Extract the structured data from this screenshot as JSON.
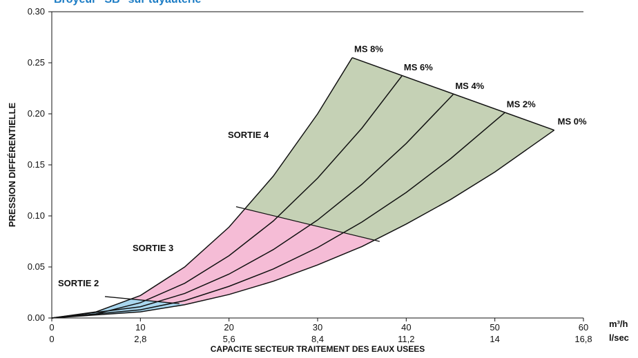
{
  "chart_data": {
    "type": "line",
    "title": "Broyeur \"SB\" sur tuyauterie",
    "x_label": "CAPACITE SECTEUR TRAITEMENT DES EAUX USEES",
    "y_label": "PRESSION DIFFÉRENTIELLE",
    "x_unit": "m³/h",
    "x2_unit": "l/sec",
    "xlim": [
      0,
      60
    ],
    "xticks": [
      0,
      10,
      20,
      30,
      40,
      50,
      60
    ],
    "x2ticks": [
      {
        "value": 0,
        "label": "0"
      },
      {
        "value": 10,
        "label": "2,8"
      },
      {
        "value": 20,
        "label": "5,6"
      },
      {
        "value": 30,
        "label": "8,4"
      },
      {
        "value": 40,
        "label": "11,2"
      },
      {
        "value": 50,
        "label": "14"
      },
      {
        "value": 60,
        "label": "16,8"
      }
    ],
    "ylim": [
      0,
      0.3
    ],
    "yticks": [
      {
        "value": 0,
        "label": "0.00"
      },
      {
        "value": 0.05,
        "label": "0.05"
      },
      {
        "value": 0.1,
        "label": "0.10"
      },
      {
        "value": 0.15,
        "label": "0.15"
      },
      {
        "value": 0.2,
        "label": "0.20"
      },
      {
        "value": 0.25,
        "label": "0.25"
      },
      {
        "value": 0.3,
        "label": "0.30"
      }
    ],
    "series": [
      {
        "name": "MS 8%",
        "color": "#111111",
        "x": [
          0,
          5,
          10,
          15,
          20,
          25,
          30,
          33.9
        ],
        "values": [
          0,
          0.006,
          0.022,
          0.05,
          0.089,
          0.139,
          0.2,
          0.255
        ]
      },
      {
        "name": "MS 6%",
        "color": "#111111",
        "x": [
          0,
          5,
          10,
          15,
          20,
          25,
          30,
          35,
          39.5
        ],
        "values": [
          0,
          0.004,
          0.015,
          0.034,
          0.061,
          0.095,
          0.137,
          0.186,
          0.237
        ]
      },
      {
        "name": "MS 4%",
        "color": "#111111",
        "x": [
          0,
          10,
          15,
          20,
          25,
          30,
          35,
          40,
          45.3
        ],
        "values": [
          0,
          0.011,
          0.024,
          0.043,
          0.067,
          0.096,
          0.131,
          0.171,
          0.219
        ]
      },
      {
        "name": "MS 2%",
        "color": "#111111",
        "x": [
          0,
          10,
          15,
          20,
          25,
          30,
          35,
          40,
          45,
          51.1
        ],
        "values": [
          0,
          0.008,
          0.017,
          0.031,
          0.048,
          0.069,
          0.094,
          0.123,
          0.156,
          0.201
        ]
      },
      {
        "name": "MS 0%",
        "color": "#111111",
        "x": [
          0,
          10,
          15,
          20,
          25,
          30,
          35,
          40,
          45,
          50,
          56.7
        ],
        "values": [
          0,
          0.006,
          0.013,
          0.023,
          0.036,
          0.052,
          0.07,
          0.092,
          0.116,
          0.143,
          0.184
        ]
      }
    ],
    "boundaries": [
      {
        "x": [
          6,
          14.4
        ],
        "values": [
          0.021,
          0.014
        ]
      },
      {
        "x": [
          20.8,
          37
        ],
        "values": [
          0.109,
          0.075
        ]
      }
    ],
    "regions": [
      {
        "name": "SORTIE 2",
        "color": "#a9d7ef"
      },
      {
        "name": "SORTIE 3",
        "color": "#f5bcd6"
      },
      {
        "name": "SORTIE 4",
        "color": "#c5d1b5"
      }
    ]
  }
}
